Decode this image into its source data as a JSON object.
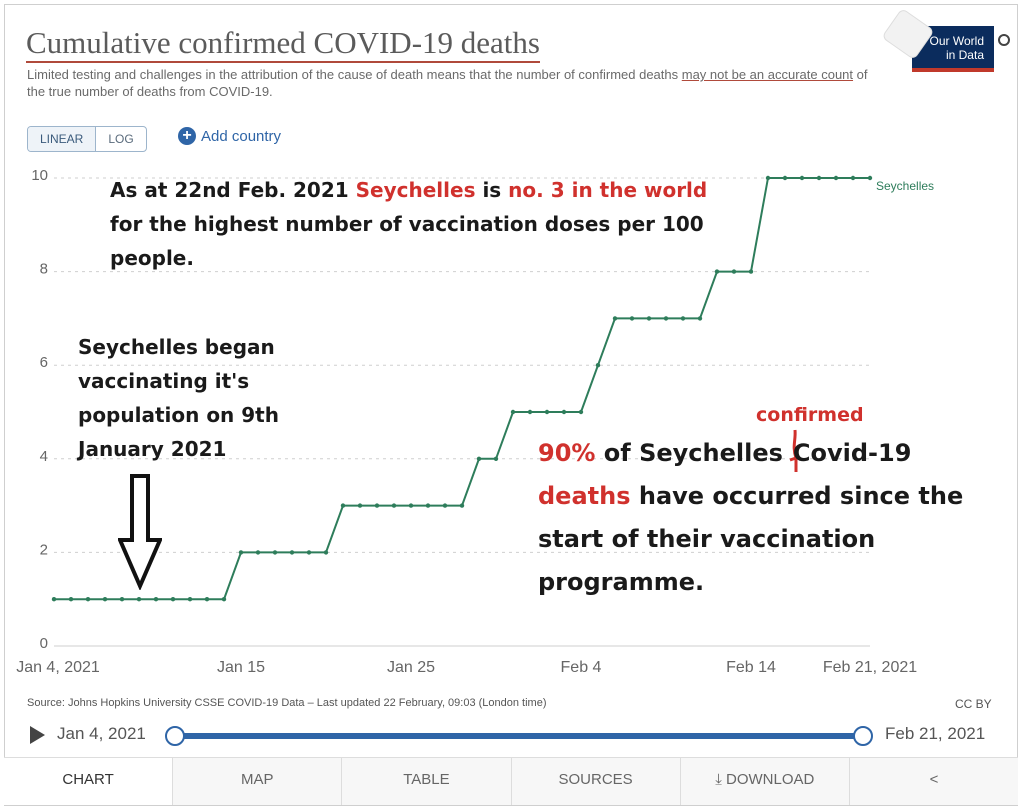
{
  "header": {
    "title": "Cumulative confirmed COVID-19 deaths",
    "subtitle_part1": "Limited testing and challenges in the attribution of the cause of death means that the number of confirmed deaths ",
    "subtitle_underlined": "may not be an accurate count",
    "subtitle_part2": " of the true number of deaths from COVID-19.",
    "logo_line1": "Our World",
    "logo_line2": "in Data"
  },
  "controls": {
    "linear_label": "LINEAR",
    "log_label": "LOG",
    "add_country_label": "Add country"
  },
  "chart_data": {
    "type": "line",
    "title": "Cumulative confirmed COVID-19 deaths",
    "x_tick_labels": [
      "Jan 4, 2021",
      "Jan 15",
      "Jan 25",
      "Feb 4",
      "Feb 14",
      "Feb 21, 2021"
    ],
    "x_tick_dates": [
      "2021-01-04",
      "2021-01-15",
      "2021-01-25",
      "2021-02-04",
      "2021-02-14",
      "2021-02-21"
    ],
    "y_tick_labels": [
      "0",
      "2",
      "4",
      "6",
      "8",
      "10"
    ],
    "ylim": [
      0,
      10
    ],
    "grid": "horizontal dotted",
    "series": [
      {
        "name": "Seychelles",
        "color": "#2e7d5b",
        "x": [
          "2021-01-04",
          "2021-01-05",
          "2021-01-06",
          "2021-01-07",
          "2021-01-08",
          "2021-01-09",
          "2021-01-10",
          "2021-01-11",
          "2021-01-12",
          "2021-01-13",
          "2021-01-14",
          "2021-01-15",
          "2021-01-16",
          "2021-01-17",
          "2021-01-18",
          "2021-01-19",
          "2021-01-20",
          "2021-01-21",
          "2021-01-22",
          "2021-01-23",
          "2021-01-24",
          "2021-01-25",
          "2021-01-26",
          "2021-01-27",
          "2021-01-28",
          "2021-01-29",
          "2021-01-30",
          "2021-01-31",
          "2021-02-01",
          "2021-02-02",
          "2021-02-03",
          "2021-02-04",
          "2021-02-05",
          "2021-02-06",
          "2021-02-07",
          "2021-02-08",
          "2021-02-09",
          "2021-02-10",
          "2021-02-11",
          "2021-02-12",
          "2021-02-13",
          "2021-02-14",
          "2021-02-15",
          "2021-02-16",
          "2021-02-17",
          "2021-02-18",
          "2021-02-19",
          "2021-02-20",
          "2021-02-21"
        ],
        "values": [
          1,
          1,
          1,
          1,
          1,
          1,
          1,
          1,
          1,
          1,
          1,
          2,
          2,
          2,
          2,
          2,
          2,
          3,
          3,
          3,
          3,
          3,
          3,
          3,
          3,
          4,
          4,
          5,
          5,
          5,
          5,
          5,
          6,
          7,
          7,
          7,
          7,
          7,
          7,
          8,
          8,
          8,
          10,
          10,
          10,
          10,
          10,
          10,
          10
        ]
      }
    ]
  },
  "annotations": {
    "a1_part1": "As at 22nd Feb. 2021 ",
    "a1_red1": "Seychelles",
    "a1_part2": " is ",
    "a1_red2": "no. 3 in the world",
    "a1_part3": " for the highest number of vaccination doses per 100 people.",
    "a2_text": "Seychelles began vaccinating it's population on 9th January 2021",
    "a3_red1": "90%",
    "a3_part1": " of Seychelles",
    "a3_part2": "Covid-19 ",
    "a3_red2": "deaths",
    "a3_part3": " have occurred since the start of their vaccination programme.",
    "a4_inserted": "confirmed"
  },
  "footer": {
    "source": "Source: Johns Hopkins University CSSE COVID-19 Data – Last updated 22 February, 09:03 (London time)",
    "license": "CC BY",
    "timeline_start": "Jan 4, 2021",
    "timeline_end": "Feb 21, 2021"
  },
  "tabs": [
    "CHART",
    "MAP",
    "TABLE",
    "SOURCES",
    "DOWNLOAD",
    ""
  ]
}
